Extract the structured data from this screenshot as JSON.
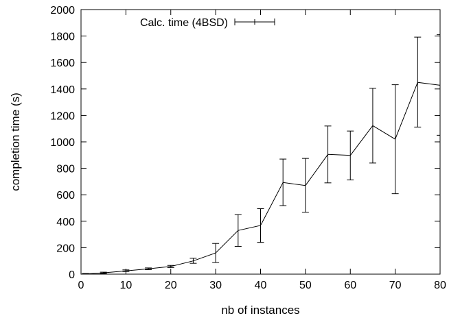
{
  "chart_data": {
    "type": "line",
    "xlabel": "nb of instances",
    "ylabel": "completion time (s)",
    "xlim": [
      0,
      80
    ],
    "ylim": [
      0,
      2000
    ],
    "xticks": [
      0,
      10,
      20,
      30,
      40,
      50,
      60,
      70,
      80
    ],
    "yticks": [
      0,
      200,
      400,
      600,
      800,
      1000,
      1200,
      1400,
      1600,
      1800,
      2000
    ],
    "grid": false,
    "legend_position": "top-left",
    "series": [
      {
        "name": "Calc. time (4BSD)",
        "color": "#000000",
        "error_bars": true,
        "points": [
          {
            "x": 1,
            "y": 2,
            "err_low": 0,
            "err_high": 5
          },
          {
            "x": 5,
            "y": 10,
            "err_low": 5,
            "err_high": 15
          },
          {
            "x": 10,
            "y": 25,
            "err_low": 20,
            "err_high": 32
          },
          {
            "x": 15,
            "y": 40,
            "err_low": 34,
            "err_high": 47
          },
          {
            "x": 20,
            "y": 58,
            "err_low": 50,
            "err_high": 66
          },
          {
            "x": 25,
            "y": 100,
            "err_low": 82,
            "err_high": 120
          },
          {
            "x": 30,
            "y": 160,
            "err_low": 88,
            "err_high": 232
          },
          {
            "x": 35,
            "y": 330,
            "err_low": 210,
            "err_high": 450
          },
          {
            "x": 40,
            "y": 368,
            "err_low": 240,
            "err_high": 495
          },
          {
            "x": 45,
            "y": 693,
            "err_low": 518,
            "err_high": 870
          },
          {
            "x": 50,
            "y": 670,
            "err_low": 468,
            "err_high": 875
          },
          {
            "x": 55,
            "y": 905,
            "err_low": 690,
            "err_high": 1120
          },
          {
            "x": 60,
            "y": 898,
            "err_low": 712,
            "err_high": 1082
          },
          {
            "x": 65,
            "y": 1123,
            "err_low": 840,
            "err_high": 1405
          },
          {
            "x": 70,
            "y": 1020,
            "err_low": 608,
            "err_high": 1432
          },
          {
            "x": 75,
            "y": 1450,
            "err_low": 1112,
            "err_high": 1792
          },
          {
            "x": 80,
            "y": 1428,
            "err_low": 1050,
            "err_high": 1810
          }
        ]
      }
    ]
  }
}
